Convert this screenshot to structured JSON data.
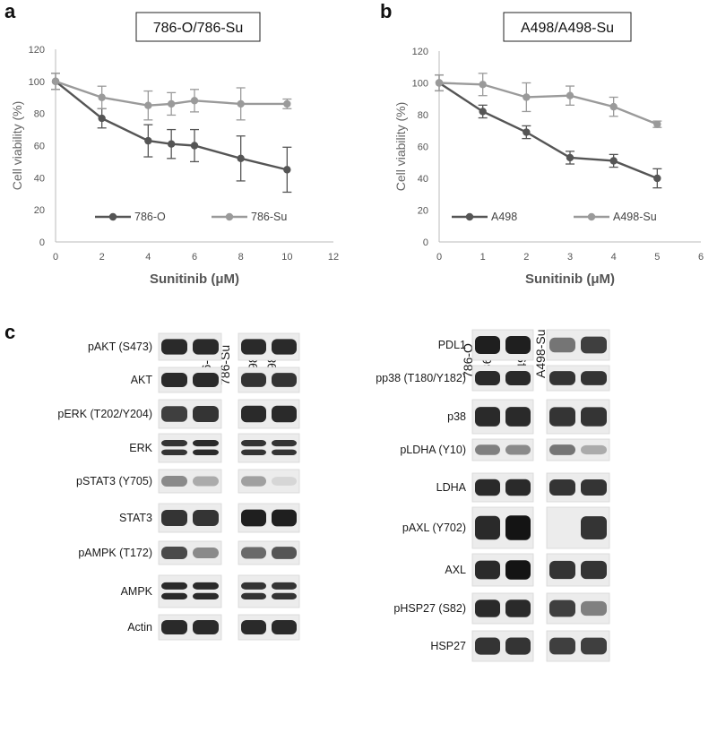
{
  "panels": {
    "a": "a",
    "b": "b",
    "c": "c"
  },
  "chart_data": [
    {
      "type": "line",
      "title": "786-O/786-Su",
      "xlabel": "Sunitinib (μM)",
      "ylabel": "Cell viability (%)",
      "xlim": [
        0,
        12
      ],
      "ylim": [
        0,
        120
      ],
      "xticks": [
        0,
        2,
        4,
        6,
        8,
        10,
        12
      ],
      "yticks": [
        0,
        20,
        40,
        60,
        80,
        100,
        120
      ],
      "grid": false,
      "legend": "bottom",
      "x": [
        0,
        2,
        4,
        5,
        6,
        8,
        10
      ],
      "series": [
        {
          "name": "786-O",
          "color": "#555555",
          "values": [
            100,
            77,
            63,
            61,
            60,
            52,
            45
          ],
          "errors": [
            5,
            6,
            10,
            9,
            10,
            14,
            14
          ]
        },
        {
          "name": "786-Su",
          "color": "#9a9a9a",
          "values": [
            100,
            90,
            85,
            86,
            88,
            86,
            86
          ],
          "errors": [
            5,
            7,
            9,
            7,
            7,
            10,
            3
          ]
        }
      ]
    },
    {
      "type": "line",
      "title": "A498/A498-Su",
      "xlabel": "Sunitinib (μM)",
      "ylabel": "Cell viability (%)",
      "xlim": [
        0,
        6
      ],
      "ylim": [
        0,
        120
      ],
      "xticks": [
        0,
        1,
        2,
        3,
        4,
        5,
        6
      ],
      "yticks": [
        0,
        20,
        40,
        60,
        80,
        100,
        120
      ],
      "grid": false,
      "legend": "bottom",
      "x": [
        0,
        1,
        2,
        3,
        4,
        5
      ],
      "series": [
        {
          "name": "A498",
          "color": "#555555",
          "values": [
            100,
            82,
            69,
            53,
            51,
            40
          ],
          "errors": [
            5,
            4,
            4,
            4,
            4,
            6
          ]
        },
        {
          "name": "A498-Su",
          "color": "#9a9a9a",
          "values": [
            100,
            99,
            91,
            92,
            85,
            74
          ],
          "errors": [
            5,
            7,
            9,
            6,
            6,
            2
          ]
        }
      ]
    }
  ],
  "blots": {
    "left": {
      "lanes": [
        "786-O",
        "786-Su",
        "A498",
        "A498-Su"
      ],
      "rows": [
        {
          "label": "pAKT (S473)",
          "intensity": [
            0.9,
            0.9,
            0.9,
            0.9
          ]
        },
        {
          "label": "AKT",
          "intensity": [
            0.9,
            0.9,
            0.85,
            0.85
          ]
        },
        {
          "label": "pERK (T202/Y204)",
          "intensity": [
            0.8,
            0.85,
            0.9,
            0.9
          ]
        },
        {
          "label": "ERK",
          "intensity": [
            0.85,
            0.9,
            0.85,
            0.85
          ],
          "double": true
        },
        {
          "label": "pSTAT3 (Y705)",
          "intensity": [
            0.45,
            0.3,
            0.35,
            0.1
          ]
        },
        {
          "label": "STAT3",
          "intensity": [
            0.85,
            0.85,
            0.95,
            0.95
          ]
        },
        {
          "label": "pAMPK (T172)",
          "intensity": [
            0.75,
            0.45,
            0.6,
            0.7
          ]
        },
        {
          "label": "AMPK",
          "intensity": [
            0.9,
            0.9,
            0.85,
            0.85
          ],
          "double": true
        },
        {
          "label": "Actin",
          "intensity": [
            0.9,
            0.9,
            0.9,
            0.9
          ]
        }
      ]
    },
    "right": {
      "lanes": [
        "786-O",
        "786-Su",
        "A498",
        "A498-Su"
      ],
      "rows": [
        {
          "label": "PDL1",
          "intensity": [
            0.95,
            0.95,
            0.55,
            0.8
          ]
        },
        {
          "label": "pp38 (T180/Y182)",
          "intensity": [
            0.9,
            0.9,
            0.85,
            0.85
          ]
        },
        {
          "label": "p38",
          "intensity": [
            0.9,
            0.9,
            0.85,
            0.85
          ]
        },
        {
          "label": "pLDHA (Y10)",
          "intensity": [
            0.5,
            0.45,
            0.55,
            0.3
          ]
        },
        {
          "label": "LDHA",
          "intensity": [
            0.9,
            0.9,
            0.85,
            0.85
          ]
        },
        {
          "label": "pAXL (Y702)",
          "intensity": [
            0.9,
            1.0,
            0.05,
            0.85
          ]
        },
        {
          "label": "AXL",
          "intensity": [
            0.9,
            1.0,
            0.85,
            0.85
          ]
        },
        {
          "label": "pHSP27 (S82)",
          "intensity": [
            0.9,
            0.9,
            0.8,
            0.5
          ]
        },
        {
          "label": "HSP27",
          "intensity": [
            0.85,
            0.85,
            0.8,
            0.8
          ]
        }
      ]
    }
  }
}
